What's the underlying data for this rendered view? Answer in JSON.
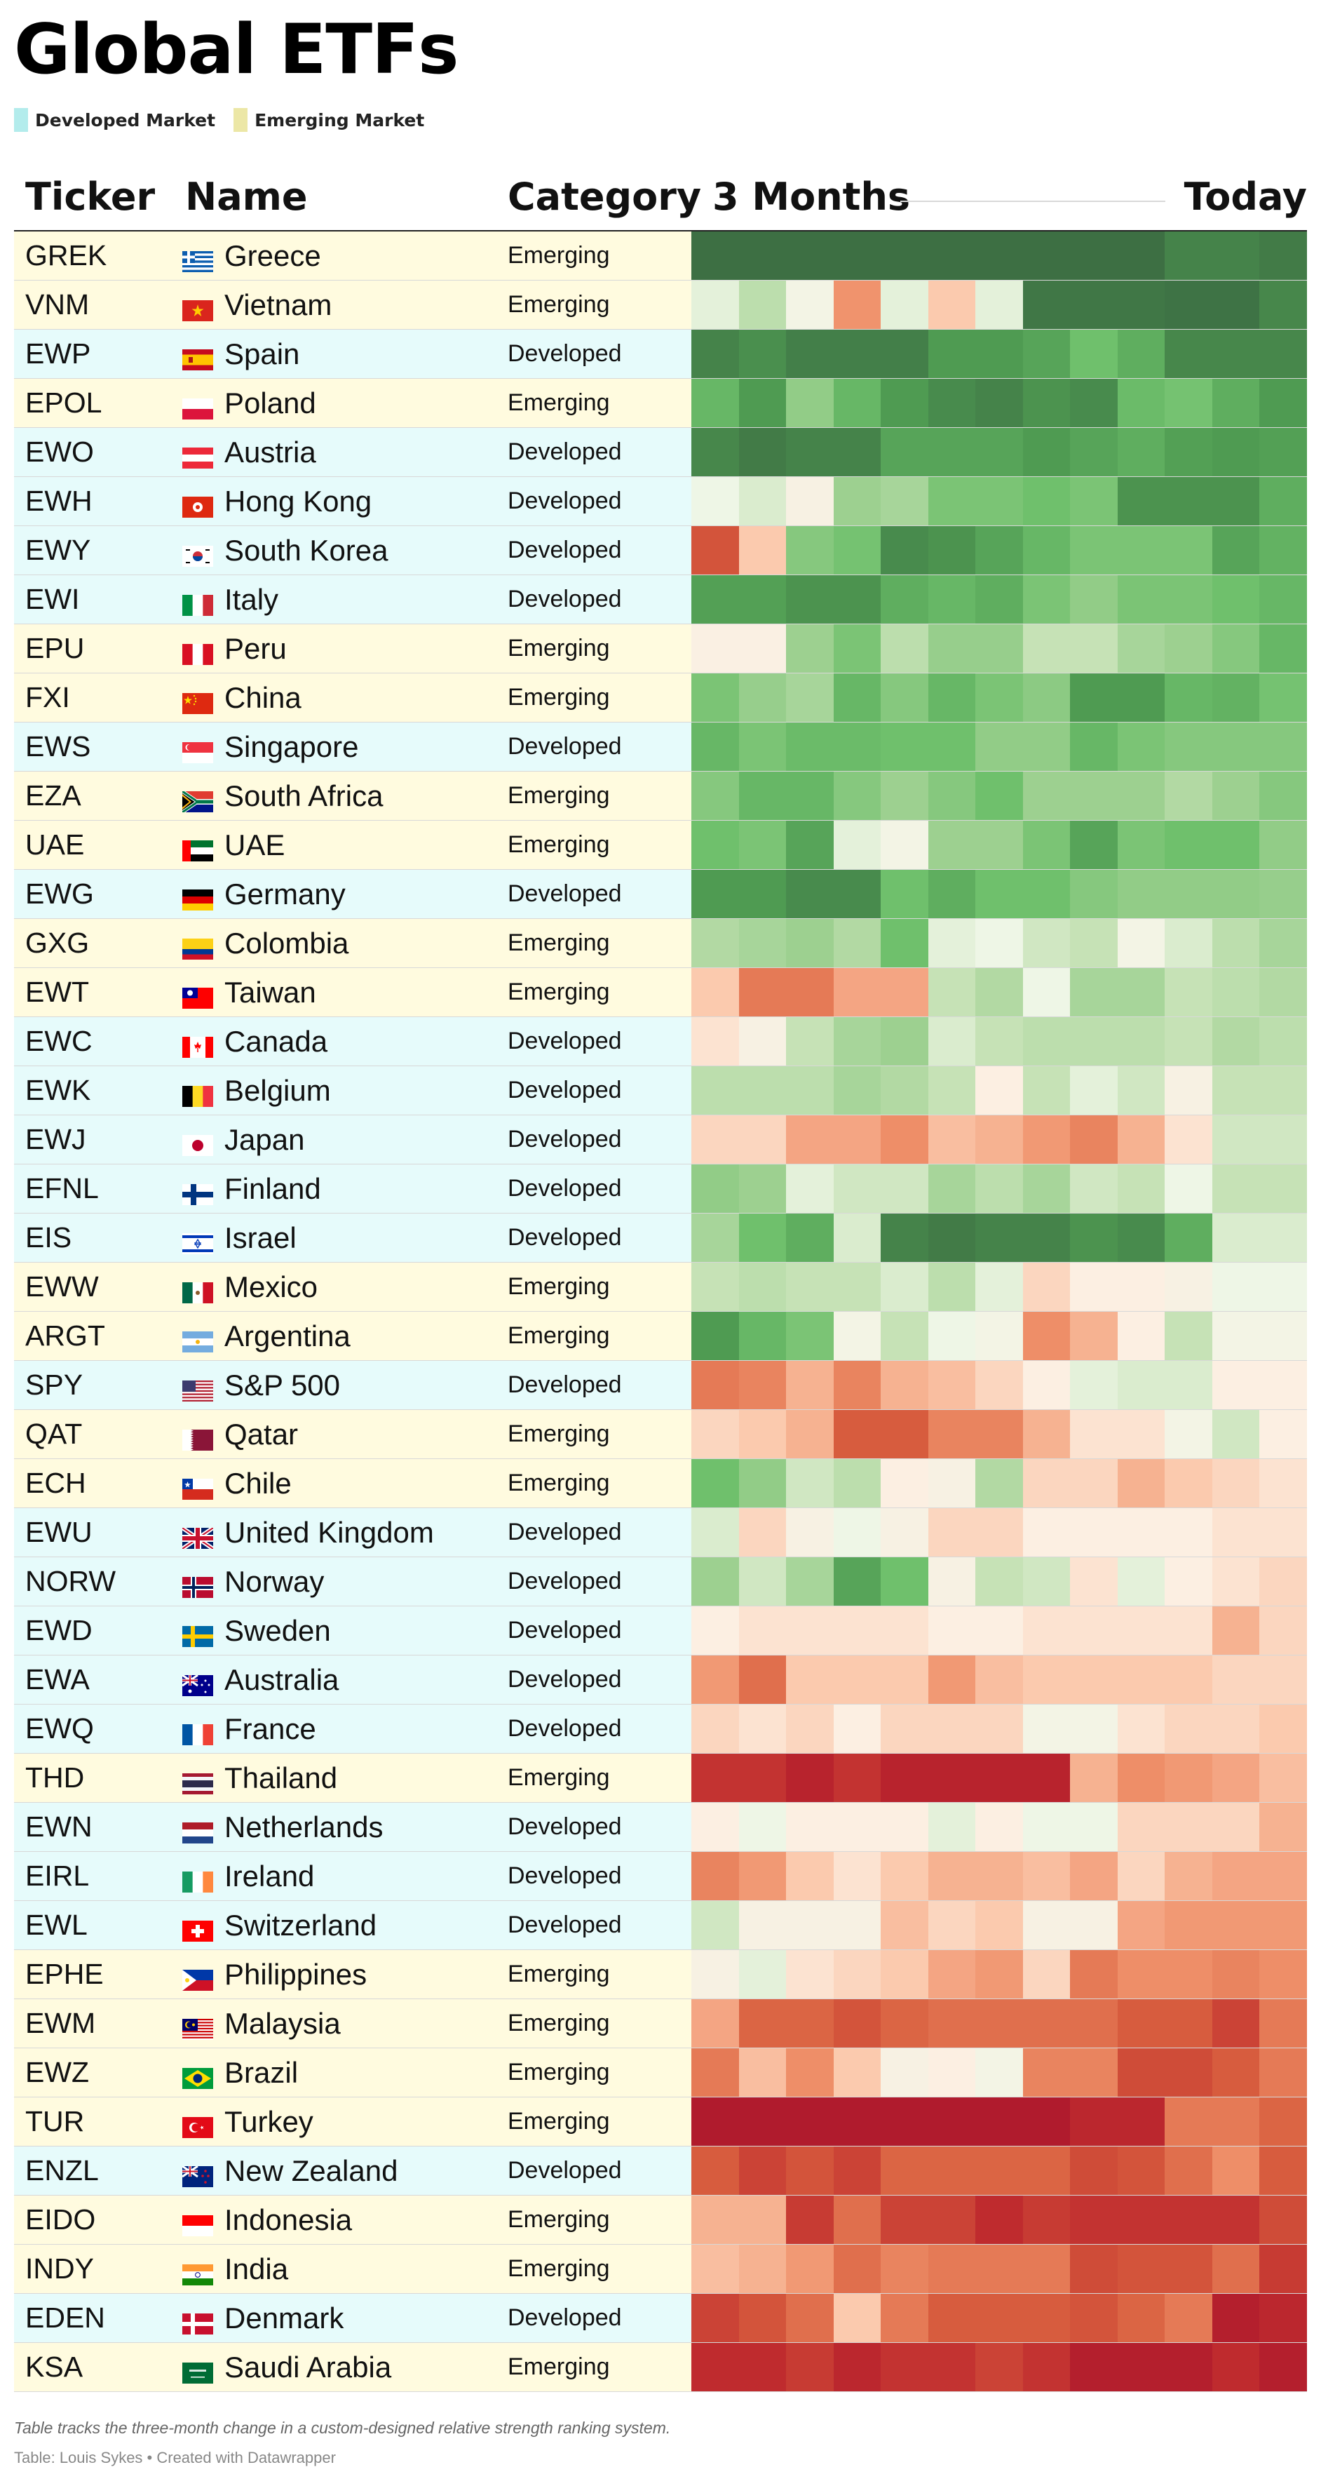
{
  "title": "Global ETFs",
  "legend": [
    {
      "label": "Developed Market",
      "color": "#b3ecec"
    },
    {
      "label": "Emerging Market",
      "color": "#ece7a6"
    }
  ],
  "headers": {
    "ticker": "Ticker",
    "name": "Name",
    "category": "Category",
    "start": "3 Months",
    "end": "Today"
  },
  "colors": {
    "Developed": "#e6fbfb",
    "Emerging": "#fffbdf",
    "divider": "#d8d8d8"
  },
  "footnote": "Table tracks the three-month change in a custom-designed relative strength ranking system.",
  "credit": "Table: Louis Sykes • Created with Datawrapper",
  "chart_data": {
    "type": "heatmap",
    "columns": [
      "Ticker",
      "Name",
      "Category",
      "3 Months",
      "Today"
    ],
    "scale": "relative strength rank (higher = stronger, green; lower = weaker, red)",
    "value_range": [
      0,
      100
    ],
    "periods": 13,
    "rows": [
      {
        "ticker": "GREK",
        "name": "Greece",
        "category": "Emerging",
        "flag": "greece-flag",
        "values": [
          99,
          99,
          99,
          99,
          99,
          99,
          99,
          99,
          99,
          99,
          94,
          94,
          96
        ]
      },
      {
        "ticker": "VNM",
        "name": "Vietnam",
        "category": "Emerging",
        "flag": "vietnam-flag",
        "values": [
          58,
          66,
          54,
          35,
          58,
          44,
          58,
          97,
          97,
          97,
          98,
          98,
          93
        ]
      },
      {
        "ticker": "EWP",
        "name": "Spain",
        "category": "Developed",
        "flag": "spain-flag",
        "values": [
          94,
          91,
          95,
          95,
          95,
          88,
          88,
          86,
          80,
          84,
          93,
          93,
          93
        ]
      },
      {
        "ticker": "EPOL",
        "name": "Poland",
        "category": "Emerging",
        "flag": "poland-flag",
        "values": [
          82,
          88,
          74,
          82,
          88,
          92,
          94,
          90,
          92,
          81,
          79,
          84,
          88
        ]
      },
      {
        "ticker": "EWO",
        "name": "Austria",
        "category": "Developed",
        "flag": "austria-flag",
        "values": [
          93,
          96,
          94,
          94,
          86,
          86,
          86,
          88,
          86,
          84,
          87,
          88,
          87
        ]
      },
      {
        "ticker": "EWH",
        "name": "Hong Kong",
        "category": "Developed",
        "flag": "hongkong-flag",
        "values": [
          56,
          60,
          52,
          72,
          70,
          78,
          78,
          80,
          78,
          90,
          90,
          90,
          84
        ]
      },
      {
        "ticker": "EWY",
        "name": "South Korea",
        "category": "Developed",
        "flag": "southkorea-flag",
        "values": [
          22,
          44,
          76,
          79,
          92,
          90,
          86,
          82,
          78,
          78,
          78,
          86,
          83
        ]
      },
      {
        "ticker": "EWI",
        "name": "Italy",
        "category": "Developed",
        "flag": "italy-flag",
        "values": [
          87,
          87,
          90,
          90,
          84,
          82,
          84,
          78,
          74,
          78,
          78,
          80,
          82
        ]
      },
      {
        "ticker": "EPU",
        "name": "Peru",
        "category": "Emerging",
        "flag": "peru-flag",
        "values": [
          51,
          51,
          72,
          78,
          66,
          73,
          73,
          64,
          64,
          70,
          72,
          76,
          82
        ]
      },
      {
        "ticker": "FXI",
        "name": "China",
        "category": "Emerging",
        "flag": "china-flag",
        "values": [
          78,
          73,
          70,
          82,
          76,
          82,
          78,
          75,
          88,
          88,
          82,
          83,
          79
        ]
      },
      {
        "ticker": "EWS",
        "name": "Singapore",
        "category": "Developed",
        "flag": "singapore-flag",
        "values": [
          82,
          78,
          81,
          81,
          80,
          80,
          74,
          74,
          82,
          78,
          76,
          76,
          76
        ]
      },
      {
        "ticker": "EZA",
        "name": "South Africa",
        "category": "Emerging",
        "flag": "southafrica-flag",
        "values": [
          76,
          82,
          82,
          76,
          72,
          76,
          80,
          72,
          72,
          72,
          68,
          72,
          76
        ]
      },
      {
        "ticker": "UAE",
        "name": "UAE",
        "category": "Emerging",
        "flag": "uae-flag",
        "values": [
          80,
          78,
          86,
          58,
          54,
          72,
          72,
          78,
          86,
          78,
          80,
          80,
          74
        ]
      },
      {
        "ticker": "EWG",
        "name": "Germany",
        "category": "Developed",
        "flag": "germany-flag",
        "values": [
          88,
          88,
          92,
          92,
          80,
          84,
          80,
          80,
          76,
          74,
          74,
          74,
          73
        ]
      },
      {
        "ticker": "GXG",
        "name": "Colombia",
        "category": "Emerging",
        "flag": "colombia-flag",
        "values": [
          68,
          70,
          72,
          68,
          80,
          58,
          56,
          62,
          64,
          54,
          60,
          66,
          70
        ]
      },
      {
        "ticker": "EWT",
        "name": "Taiwan",
        "category": "Emerging",
        "flag": "taiwan-flag",
        "values": [
          44,
          30,
          30,
          38,
          38,
          64,
          68,
          56,
          70,
          70,
          64,
          66,
          68
        ]
      },
      {
        "ticker": "EWC",
        "name": "Canada",
        "category": "Developed",
        "flag": "canada-flag",
        "values": [
          48,
          52,
          64,
          70,
          72,
          60,
          64,
          66,
          66,
          66,
          64,
          68,
          66
        ]
      },
      {
        "ticker": "EWK",
        "name": "Belgium",
        "category": "Developed",
        "flag": "belgium-flag",
        "values": [
          66,
          66,
          66,
          70,
          68,
          64,
          50,
          64,
          58,
          62,
          52,
          64,
          64
        ]
      },
      {
        "ticker": "EWJ",
        "name": "Japan",
        "category": "Developed",
        "flag": "japan-flag",
        "values": [
          46,
          46,
          38,
          38,
          34,
          42,
          40,
          36,
          32,
          40,
          48,
          62,
          62
        ]
      },
      {
        "ticker": "EFNL",
        "name": "Finland",
        "category": "Developed",
        "flag": "finland-flag",
        "values": [
          74,
          72,
          58,
          62,
          62,
          70,
          66,
          70,
          62,
          64,
          56,
          64,
          64
        ]
      },
      {
        "ticker": "EIS",
        "name": "Israel",
        "category": "Developed",
        "flag": "israel-flag",
        "values": [
          70,
          80,
          84,
          60,
          94,
          96,
          94,
          94,
          90,
          92,
          84,
          60,
          60
        ]
      },
      {
        "ticker": "EWW",
        "name": "Mexico",
        "category": "Emerging",
        "flag": "mexico-flag",
        "values": [
          64,
          66,
          64,
          64,
          60,
          66,
          58,
          46,
          50,
          50,
          52,
          56,
          56
        ]
      },
      {
        "ticker": "ARGT",
        "name": "Argentina",
        "category": "Emerging",
        "flag": "argentina-flag",
        "values": [
          88,
          82,
          78,
          54,
          64,
          56,
          54,
          34,
          40,
          50,
          64,
          54,
          54
        ]
      },
      {
        "ticker": "SPY",
        "name": "S&P 500",
        "category": "Developed",
        "flag": "us-flag",
        "values": [
          30,
          32,
          40,
          32,
          40,
          42,
          46,
          50,
          58,
          60,
          60,
          50,
          50
        ]
      },
      {
        "ticker": "QAT",
        "name": "Qatar",
        "category": "Emerging",
        "flag": "qatar-flag",
        "values": [
          46,
          44,
          40,
          24,
          24,
          32,
          32,
          40,
          48,
          48,
          54,
          62,
          50
        ]
      },
      {
        "ticker": "ECH",
        "name": "Chile",
        "category": "Emerging",
        "flag": "chile-flag",
        "values": [
          80,
          74,
          62,
          66,
          50,
          52,
          68,
          46,
          46,
          40,
          44,
          46,
          48
        ]
      },
      {
        "ticker": "EWU",
        "name": "United Kingdom",
        "category": "Developed",
        "flag": "uk-flag",
        "values": [
          60,
          46,
          52,
          56,
          52,
          46,
          46,
          50,
          50,
          50,
          50,
          48,
          48
        ]
      },
      {
        "ticker": "NORW",
        "name": "Norway",
        "category": "Developed",
        "flag": "norway-flag",
        "values": [
          72,
          62,
          70,
          86,
          80,
          52,
          64,
          62,
          48,
          58,
          50,
          48,
          46
        ]
      },
      {
        "ticker": "EWD",
        "name": "Sweden",
        "category": "Developed",
        "flag": "sweden-flag",
        "values": [
          50,
          48,
          48,
          48,
          48,
          50,
          50,
          48,
          48,
          48,
          48,
          40,
          46
        ]
      },
      {
        "ticker": "EWA",
        "name": "Australia",
        "category": "Developed",
        "flag": "australia-flag",
        "values": [
          36,
          28,
          44,
          44,
          44,
          36,
          42,
          44,
          44,
          44,
          44,
          46,
          46
        ]
      },
      {
        "ticker": "EWQ",
        "name": "France",
        "category": "Developed",
        "flag": "france-flag",
        "values": [
          46,
          48,
          46,
          50,
          46,
          46,
          46,
          54,
          54,
          48,
          46,
          46,
          44
        ]
      },
      {
        "ticker": "THD",
        "name": "Thailand",
        "category": "Emerging",
        "flag": "thailand-flag",
        "values": [
          14,
          14,
          8,
          14,
          8,
          8,
          8,
          8,
          40,
          34,
          36,
          38,
          42
        ]
      },
      {
        "ticker": "EWN",
        "name": "Netherlands",
        "category": "Developed",
        "flag": "netherlands-flag",
        "values": [
          50,
          56,
          50,
          50,
          50,
          58,
          50,
          56,
          56,
          46,
          46,
          46,
          40
        ]
      },
      {
        "ticker": "EIRL",
        "name": "Ireland",
        "category": "Developed",
        "flag": "ireland-flag",
        "values": [
          32,
          36,
          44,
          48,
          44,
          40,
          40,
          42,
          38,
          46,
          40,
          38,
          38
        ]
      },
      {
        "ticker": "EWL",
        "name": "Switzerland",
        "category": "Developed",
        "flag": "switzerland-flag",
        "values": [
          62,
          52,
          52,
          52,
          42,
          46,
          44,
          52,
          52,
          38,
          36,
          36,
          36
        ]
      },
      {
        "ticker": "EPHE",
        "name": "Philippines",
        "category": "Emerging",
        "flag": "philippines-flag",
        "values": [
          52,
          58,
          48,
          46,
          44,
          38,
          36,
          46,
          30,
          34,
          34,
          32,
          34
        ]
      },
      {
        "ticker": "EWM",
        "name": "Malaysia",
        "category": "Emerging",
        "flag": "malaysia-flag",
        "values": [
          38,
          26,
          26,
          22,
          26,
          28,
          28,
          28,
          28,
          24,
          24,
          18,
          30
        ]
      },
      {
        "ticker": "EWZ",
        "name": "Brazil",
        "category": "Emerging",
        "flag": "brazil-flag",
        "values": [
          30,
          42,
          34,
          44,
          52,
          50,
          54,
          32,
          32,
          20,
          20,
          24,
          30
        ]
      },
      {
        "ticker": "TUR",
        "name": "Turkey",
        "category": "Emerging",
        "flag": "turkey-flag",
        "values": [
          4,
          4,
          4,
          4,
          4,
          4,
          4,
          4,
          10,
          10,
          30,
          30,
          26
        ]
      },
      {
        "ticker": "ENZL",
        "name": "New Zealand",
        "category": "Developed",
        "flag": "newzealand-flag",
        "values": [
          24,
          18,
          22,
          18,
          26,
          26,
          26,
          26,
          20,
          22,
          28,
          34,
          24
        ]
      },
      {
        "ticker": "EIDO",
        "name": "Indonesia",
        "category": "Emerging",
        "flag": "indonesia-flag",
        "values": [
          40,
          40,
          16,
          28,
          18,
          18,
          12,
          16,
          14,
          14,
          14,
          14,
          20
        ]
      },
      {
        "ticker": "INDY",
        "name": "India",
        "category": "Emerging",
        "flag": "india-flag",
        "values": [
          42,
          40,
          36,
          28,
          32,
          30,
          30,
          30,
          20,
          22,
          22,
          28,
          16
        ]
      },
      {
        "ticker": "EDEN",
        "name": "Denmark",
        "category": "Developed",
        "flag": "denmark-flag",
        "values": [
          18,
          22,
          28,
          44,
          30,
          24,
          24,
          24,
          22,
          26,
          30,
          6,
          10
        ]
      },
      {
        "ticker": "KSA",
        "name": "Saudi Arabia",
        "category": "Emerging",
        "flag": "saudi-flag",
        "values": [
          12,
          12,
          16,
          10,
          14,
          14,
          18,
          14,
          6,
          6,
          6,
          12,
          6
        ]
      }
    ]
  }
}
